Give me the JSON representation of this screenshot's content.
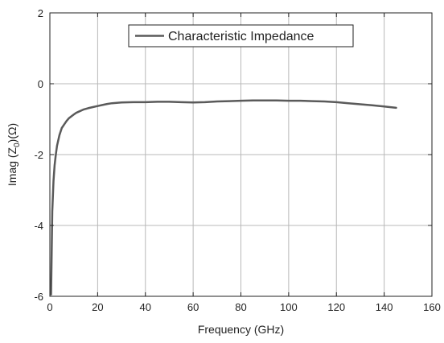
{
  "chart_data": {
    "type": "line",
    "title": "",
    "xlabel": "Frequency (GHz)",
    "ylabel_parts": [
      "Imag (Z",
      "0",
      ")(Ω)"
    ],
    "xlim": [
      0,
      160
    ],
    "ylim": [
      -6,
      2
    ],
    "xticks": [
      0,
      20,
      40,
      60,
      80,
      100,
      120,
      140,
      160
    ],
    "yticks": [
      -6,
      -4,
      -2,
      0,
      2
    ],
    "grid": true,
    "legend_position": "top-center",
    "colors": {
      "line": "#5a5a5a",
      "grid": "#b8b8b8",
      "frame": "#222222"
    },
    "series": [
      {
        "name": "Characteristic Impedance",
        "x": [
          0.5,
          1,
          1.5,
          2,
          2.5,
          3,
          4,
          5,
          6,
          7,
          8,
          9,
          10,
          11,
          12,
          14,
          16,
          18,
          20,
          22,
          24,
          26,
          28,
          30,
          35,
          40,
          45,
          50,
          55,
          60,
          65,
          70,
          75,
          80,
          85,
          90,
          95,
          100,
          105,
          110,
          115,
          120,
          125,
          130,
          135,
          140,
          145
        ],
        "y": [
          -5.95,
          -3.6,
          -2.75,
          -2.3,
          -2.0,
          -1.75,
          -1.45,
          -1.25,
          -1.15,
          -1.05,
          -0.97,
          -0.92,
          -0.87,
          -0.82,
          -0.79,
          -0.73,
          -0.69,
          -0.66,
          -0.63,
          -0.6,
          -0.57,
          -0.55,
          -0.54,
          -0.53,
          -0.52,
          -0.52,
          -0.51,
          -0.51,
          -0.52,
          -0.53,
          -0.52,
          -0.5,
          -0.49,
          -0.48,
          -0.47,
          -0.47,
          -0.47,
          -0.48,
          -0.48,
          -0.49,
          -0.5,
          -0.52,
          -0.55,
          -0.58,
          -0.61,
          -0.64,
          -0.68
        ]
      }
    ]
  }
}
